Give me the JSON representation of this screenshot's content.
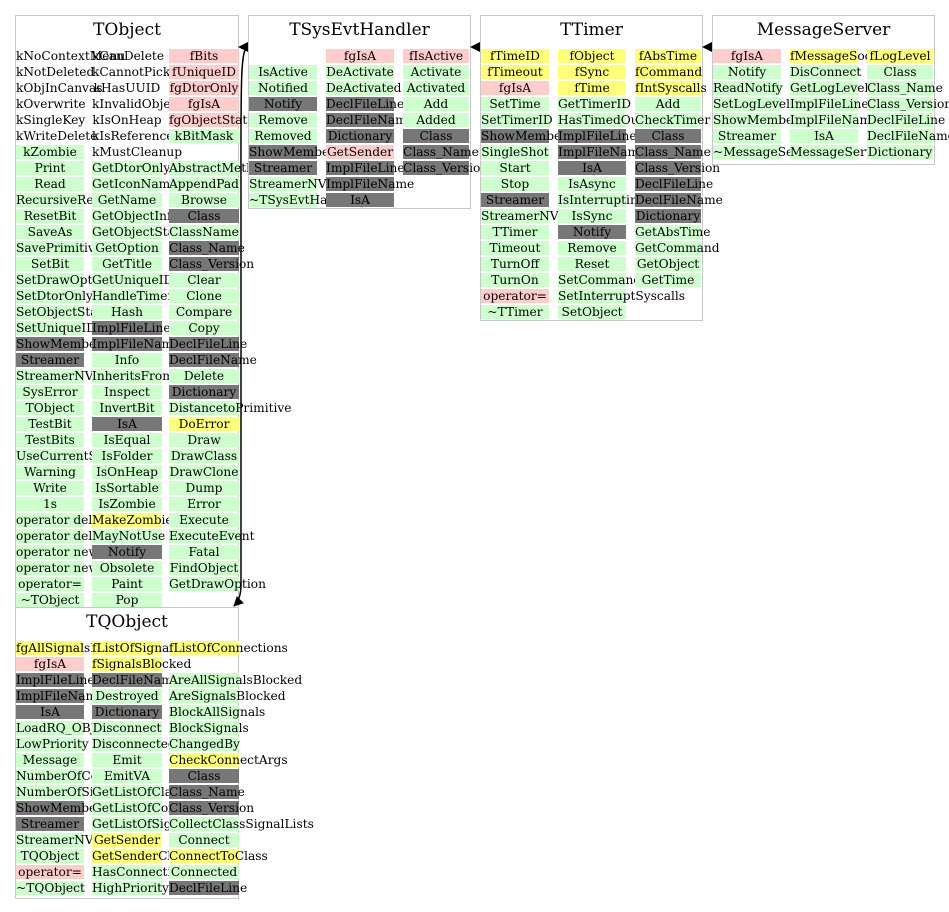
{
  "colors": {
    "green": "#ccffcc",
    "gray": "#777777",
    "pink": "#ffcccc",
    "yellow": "#ffff77"
  },
  "classes": [
    {
      "title": "TObject",
      "columns": [
        [
          [
            "kNoContextMenu",
            "none"
          ],
          [
            "kNotDeleted",
            "none"
          ],
          [
            "kObjInCanvas",
            "none"
          ],
          [
            "kOverwrite",
            "none"
          ],
          [
            "kSingleKey",
            "none"
          ],
          [
            "kWriteDelete",
            "none"
          ],
          [
            "kZombie",
            "green"
          ],
          [
            "Print",
            "green"
          ],
          [
            "Read",
            "green"
          ],
          [
            "RecursiveRemove",
            "green"
          ],
          [
            "ResetBit",
            "green"
          ],
          [
            "SaveAs",
            "green"
          ],
          [
            "SavePrimitive",
            "green"
          ],
          [
            "SetBit",
            "green"
          ],
          [
            "SetDrawOption",
            "green"
          ],
          [
            "SetDtorOnly",
            "green"
          ],
          [
            "SetObjectStat",
            "green"
          ],
          [
            "SetUniqueID",
            "green"
          ],
          [
            "ShowMembers",
            "gray"
          ],
          [
            "Streamer",
            "gray"
          ],
          [
            "StreamerNVirtual",
            "green"
          ],
          [
            "SysError",
            "green"
          ],
          [
            "TObject",
            "green"
          ],
          [
            "TestBit",
            "green"
          ],
          [
            "TestBits",
            "green"
          ],
          [
            "UseCurrentStyle",
            "green"
          ],
          [
            "Warning",
            "green"
          ],
          [
            "Write",
            "green"
          ],
          [
            "1s",
            "green"
          ],
          [
            "operator delete",
            "green"
          ],
          [
            "operator delete[]",
            "green"
          ],
          [
            "operator new",
            "green"
          ],
          [
            "operator new[]",
            "green"
          ],
          [
            "operator=",
            "green"
          ],
          [
            "~TObject",
            "green"
          ]
        ],
        [
          [
            "kCanDelete",
            "none"
          ],
          [
            "kCannotPick",
            "none"
          ],
          [
            "kHasUUID",
            "none"
          ],
          [
            "kInvalidObject",
            "none"
          ],
          [
            "kIsOnHeap",
            "none"
          ],
          [
            "kIsReferenced",
            "none"
          ],
          [
            "kMustCleanup",
            "none"
          ],
          [
            "GetDtorOnly",
            "green"
          ],
          [
            "GetIconName",
            "green"
          ],
          [
            "GetName",
            "green"
          ],
          [
            "GetObjectInfo",
            "green"
          ],
          [
            "GetObjectStat",
            "green"
          ],
          [
            "GetOption",
            "green"
          ],
          [
            "GetTitle",
            "green"
          ],
          [
            "GetUniqueID",
            "green"
          ],
          [
            "HandleTimer",
            "green"
          ],
          [
            "Hash",
            "green"
          ],
          [
            "ImplFileLine",
            "gray"
          ],
          [
            "ImplFileName",
            "gray"
          ],
          [
            "Info",
            "green"
          ],
          [
            "InheritsFrom",
            "green"
          ],
          [
            "Inspect",
            "green"
          ],
          [
            "InvertBit",
            "green"
          ],
          [
            "IsA",
            "gray"
          ],
          [
            "IsEqual",
            "green"
          ],
          [
            "IsFolder",
            "green"
          ],
          [
            "IsOnHeap",
            "green"
          ],
          [
            "IsSortable",
            "green"
          ],
          [
            "IsZombie",
            "green"
          ],
          [
            "MakeZombie",
            "yellow"
          ],
          [
            "MayNotUse",
            "green"
          ],
          [
            "Notify",
            "gray"
          ],
          [
            "Obsolete",
            "green"
          ],
          [
            "Paint",
            "green"
          ],
          [
            "Pop",
            "green"
          ]
        ],
        [
          [
            "fBits",
            "pink"
          ],
          [
            "fUniqueID",
            "pink"
          ],
          [
            "fgDtorOnly",
            "pink"
          ],
          [
            "fgIsA",
            "pink"
          ],
          [
            "fgObjectStat",
            "pink"
          ],
          [
            "kBitMask",
            "green"
          ],
          [
            "",
            "none"
          ],
          [
            "AbstractMethod",
            "green"
          ],
          [
            "AppendPad",
            "green"
          ],
          [
            "Browse",
            "green"
          ],
          [
            "Class",
            "gray"
          ],
          [
            "ClassName",
            "green"
          ],
          [
            "Class_Name",
            "gray"
          ],
          [
            "Class_Version",
            "gray"
          ],
          [
            "Clear",
            "green"
          ],
          [
            "Clone",
            "green"
          ],
          [
            "Compare",
            "green"
          ],
          [
            "Copy",
            "green"
          ],
          [
            "DeclFileLine",
            "gray"
          ],
          [
            "DeclFileName",
            "gray"
          ],
          [
            "Delete",
            "green"
          ],
          [
            "Dictionary",
            "gray"
          ],
          [
            "DistancetoPrimitive",
            "green"
          ],
          [
            "DoError",
            "yellow"
          ],
          [
            "Draw",
            "green"
          ],
          [
            "DrawClass",
            "green"
          ],
          [
            "DrawClone",
            "green"
          ],
          [
            "Dump",
            "green"
          ],
          [
            "Error",
            "green"
          ],
          [
            "Execute",
            "green"
          ],
          [
            "ExecuteEvent",
            "green"
          ],
          [
            "Fatal",
            "green"
          ],
          [
            "FindObject",
            "green"
          ],
          [
            "GetDrawOption",
            "green"
          ]
        ]
      ]
    },
    {
      "title": "TSysEvtHandler",
      "columns": [
        [
          [
            "",
            "none"
          ],
          [
            "IsActive",
            "green"
          ],
          [
            "Notified",
            "green"
          ],
          [
            "Notify",
            "gray"
          ],
          [
            "Remove",
            "green"
          ],
          [
            "Removed",
            "green"
          ],
          [
            "ShowMembers",
            "gray"
          ],
          [
            "Streamer",
            "gray"
          ],
          [
            "StreamerNVirtual",
            "green"
          ],
          [
            "~TSysEvtHandler",
            "green"
          ]
        ],
        [
          [
            "fgIsA",
            "pink"
          ],
          [
            "DeActivate",
            "green"
          ],
          [
            "DeActivated",
            "green"
          ],
          [
            "DeclFileLine",
            "gray"
          ],
          [
            "DeclFileName",
            "gray"
          ],
          [
            "Dictionary",
            "gray"
          ],
          [
            "GetSender",
            "pink"
          ],
          [
            "ImplFileLine",
            "gray"
          ],
          [
            "ImplFileName",
            "gray"
          ],
          [
            "IsA",
            "gray"
          ]
        ],
        [
          [
            "fIsActive",
            "pink"
          ],
          [
            "Activate",
            "green"
          ],
          [
            "Activated",
            "green"
          ],
          [
            "Add",
            "green"
          ],
          [
            "Added",
            "green"
          ],
          [
            "Class",
            "gray"
          ],
          [
            "Class_Name",
            "gray"
          ],
          [
            "Class_Version",
            "gray"
          ]
        ]
      ]
    },
    {
      "title": "TTimer",
      "columns": [
        [
          [
            "fTimeID",
            "yellow"
          ],
          [
            "fTimeout",
            "yellow"
          ],
          [
            "fgIsA",
            "pink"
          ],
          [
            "SetTime",
            "green"
          ],
          [
            "SetTimerID",
            "green"
          ],
          [
            "ShowMembers",
            "gray"
          ],
          [
            "SingleShot",
            "green"
          ],
          [
            "Start",
            "green"
          ],
          [
            "Stop",
            "green"
          ],
          [
            "Streamer",
            "gray"
          ],
          [
            "StreamerNVirtual",
            "green"
          ],
          [
            "TTimer",
            "green"
          ],
          [
            "Timeout",
            "green"
          ],
          [
            "TurnOff",
            "green"
          ],
          [
            "TurnOn",
            "green"
          ],
          [
            "operator=",
            "pink"
          ],
          [
            "~TTimer",
            "green"
          ]
        ],
        [
          [
            "fObject",
            "yellow"
          ],
          [
            "fSync",
            "yellow"
          ],
          [
            "fTime",
            "yellow"
          ],
          [
            "GetTimerID",
            "green"
          ],
          [
            "HasTimedOut",
            "green"
          ],
          [
            "ImplFileLine",
            "gray"
          ],
          [
            "ImplFileName",
            "gray"
          ],
          [
            "IsA",
            "gray"
          ],
          [
            "IsAsync",
            "green"
          ],
          [
            "IsInterruptingSyscalls",
            "green"
          ],
          [
            "IsSync",
            "green"
          ],
          [
            "Notify",
            "gray"
          ],
          [
            "Remove",
            "green"
          ],
          [
            "Reset",
            "green"
          ],
          [
            "SetCommand",
            "green"
          ],
          [
            "SetInterruptSyscalls",
            "green"
          ],
          [
            "SetObject",
            "green"
          ]
        ],
        [
          [
            "fAbsTime",
            "yellow"
          ],
          [
            "fCommand",
            "yellow"
          ],
          [
            "fIntSyscalls",
            "yellow"
          ],
          [
            "Add",
            "green"
          ],
          [
            "CheckTimer",
            "green"
          ],
          [
            "Class",
            "gray"
          ],
          [
            "Class_Name",
            "gray"
          ],
          [
            "Class_Version",
            "gray"
          ],
          [
            "DeclFileLine",
            "gray"
          ],
          [
            "DeclFileName",
            "gray"
          ],
          [
            "Dictionary",
            "gray"
          ],
          [
            "GetAbsTime",
            "green"
          ],
          [
            "GetCommand",
            "green"
          ],
          [
            "GetObject",
            "green"
          ],
          [
            "GetTime",
            "green"
          ]
        ]
      ]
    },
    {
      "title": "MessageServer",
      "columns": [
        [
          [
            "fgIsA",
            "pink"
          ],
          [
            "Notify",
            "green"
          ],
          [
            "ReadNotify",
            "green"
          ],
          [
            "SetLogLevel",
            "green"
          ],
          [
            "ShowMembers",
            "green"
          ],
          [
            "Streamer",
            "green"
          ],
          [
            "~MessageServer",
            "green"
          ]
        ],
        [
          [
            "fMessageSocket",
            "yellow"
          ],
          [
            "DisConnect",
            "green"
          ],
          [
            "GetLogLevel",
            "green"
          ],
          [
            "ImplFileLine",
            "green"
          ],
          [
            "ImplFileName",
            "green"
          ],
          [
            "IsA",
            "green"
          ],
          [
            "MessageServer",
            "green"
          ]
        ],
        [
          [
            "fLogLevel",
            "yellow"
          ],
          [
            "Class",
            "green"
          ],
          [
            "Class_Name",
            "green"
          ],
          [
            "Class_Version",
            "green"
          ],
          [
            "DeclFileLine",
            "green"
          ],
          [
            "DeclFileName",
            "green"
          ],
          [
            "Dictionary",
            "green"
          ]
        ]
      ]
    },
    {
      "title": "TQObject",
      "columns": [
        [
          [
            "fgAllSignalsBlocked",
            "yellow"
          ],
          [
            "fgIsA",
            "pink"
          ],
          [
            "ImplFileLine",
            "gray"
          ],
          [
            "ImplFileName",
            "gray"
          ],
          [
            "IsA",
            "gray"
          ],
          [
            "LoadRQ_OBJECT",
            "green"
          ],
          [
            "LowPriority",
            "green"
          ],
          [
            "Message",
            "green"
          ],
          [
            "NumberOfConnections",
            "green"
          ],
          [
            "NumberOfSignals",
            "green"
          ],
          [
            "ShowMembers",
            "gray"
          ],
          [
            "Streamer",
            "gray"
          ],
          [
            "StreamerNVirtual",
            "green"
          ],
          [
            "TQObject",
            "green"
          ],
          [
            "operator=",
            "pink"
          ],
          [
            "~TQObject",
            "green"
          ]
        ],
        [
          [
            "fListOfSignals",
            "yellow"
          ],
          [
            "fSignalsBlocked",
            "yellow"
          ],
          [
            "DeclFileName",
            "gray"
          ],
          [
            "Destroyed",
            "green"
          ],
          [
            "Dictionary",
            "gray"
          ],
          [
            "Disconnect",
            "green"
          ],
          [
            "Disconnected",
            "green"
          ],
          [
            "Emit",
            "green"
          ],
          [
            "EmitVA",
            "green"
          ],
          [
            "GetListOfClassSignals",
            "green"
          ],
          [
            "GetListOfConnections",
            "green"
          ],
          [
            "GetListOfSignals",
            "green"
          ],
          [
            "GetSender",
            "yellow"
          ],
          [
            "GetSenderClassName",
            "yellow"
          ],
          [
            "HasConnection",
            "green"
          ],
          [
            "HighPriority",
            "green"
          ]
        ],
        [
          [
            "fListOfConnections",
            "yellow"
          ],
          [
            "",
            "none"
          ],
          [
            "AreAllSignalsBlocked",
            "green"
          ],
          [
            "AreSignalsBlocked",
            "green"
          ],
          [
            "BlockAllSignals",
            "green"
          ],
          [
            "BlockSignals",
            "green"
          ],
          [
            "ChangedBy",
            "green"
          ],
          [
            "CheckConnectArgs",
            "yellow"
          ],
          [
            "Class",
            "gray"
          ],
          [
            "Class_Name",
            "gray"
          ],
          [
            "Class_Version",
            "gray"
          ],
          [
            "CollectClassSignalLists",
            "green"
          ],
          [
            "Connect",
            "green"
          ],
          [
            "ConnectToClass",
            "yellow"
          ],
          [
            "Connected",
            "green"
          ],
          [
            "DeclFileLine",
            "gray"
          ]
        ]
      ]
    }
  ]
}
